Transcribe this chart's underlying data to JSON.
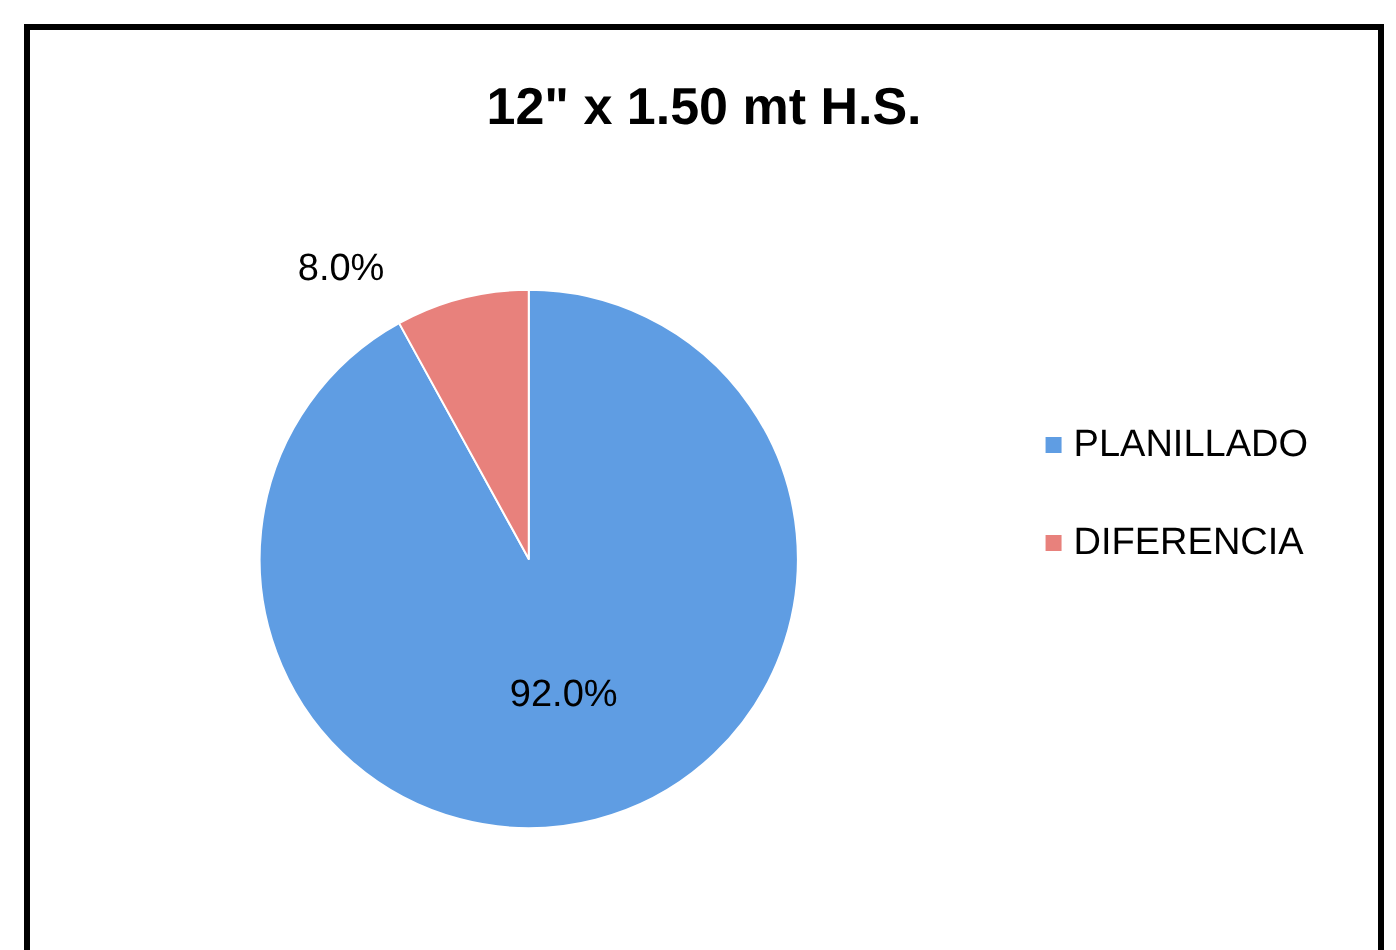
{
  "chart_data": {
    "type": "pie",
    "title": "12\" x 1.50 mt H.S.",
    "categories": [
      "PLANILLADO",
      "DIFERENCIA"
    ],
    "values": [
      92,
      8
    ],
    "colors": [
      "#5f9de3",
      "#e8817c"
    ],
    "value_labels": [
      "92.0%",
      "8.0%"
    ],
    "legend": "right"
  }
}
